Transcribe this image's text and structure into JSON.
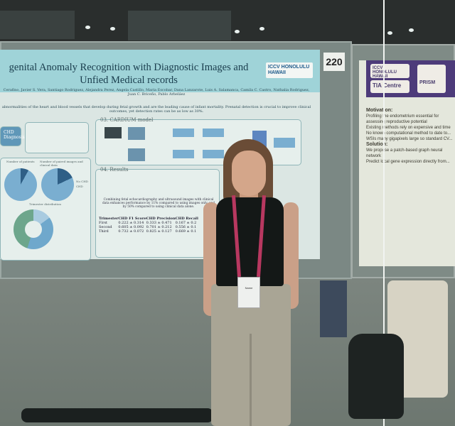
{
  "poster_left": {
    "title_line1": "genital Anomaly Recognition with Diagnostic Images and",
    "title_line2": "Unfied Medical records",
    "authors": "Cerafino, Javier S. Vera, Santiago Rodriguez, Alejandra Perez, Angela Castillo, Maria Escobar, Dana Lanzarote, Luis A. Salamanca, Camila C. Castro, Nathalia Rodriguez, Juan C. Briceño, Pablo Arbeláez",
    "abstract": "abnormalities of the heart and blood vessels that develop during fetal growth and are the leading cause of infant mortality. Prenatal detection is crucial to improve clinical outcomes, yet detection rates can be as low as 30%.",
    "logo_text": "ICCV HONOLULU HAWAII",
    "side_label": "CHD Diagnosis",
    "section_model": "03. CARDIUM model",
    "section_results": "04. Results",
    "chart_titles": [
      "Number of patients",
      "Number of paired images and clinical data",
      "Trimester distribution"
    ],
    "legend": [
      "No CHD",
      "CHD"
    ],
    "results_text": "Combining fetal echocardiography and ultrasound images with clinical data enhances performance by 11% compared to using images only, and by 50% compared to using clinical data alone.",
    "table": {
      "headers": [
        "Trimester",
        "CHD F1 Score",
        "CHD Precision",
        "CHD Recall"
      ],
      "rows": [
        [
          "First",
          "0.222 ± 0.314",
          "0.333 ± 0.471",
          "0.167 ± 0.2"
        ],
        [
          "Second",
          "0.605 ± 0.092",
          "0.701 ± 0.212",
          "0.556 ± 0.1"
        ],
        [
          "Third",
          "0.732 ± 0.072",
          "0.825 ± 0.127",
          "0.669 ± 0.1"
        ]
      ]
    }
  },
  "board_number": "220",
  "poster_right": {
    "logos": [
      "ICCV HONOLULU HAWAII",
      "TIA Centre",
      "PRISM"
    ],
    "motivation_title": "Motivation:",
    "motivation": [
      "Profiling the endometrium essential for assessing reproductive potential",
      "Existing methods rely on expensive and time",
      "No known computational method to date to...",
      "WSIs many gigapixels large so standard CV..."
    ],
    "solution_title": "Solution:",
    "solution": [
      "We propose a patch-based graph neural network",
      "Predict local gene expression directly from..."
    ]
  },
  "badge_text": "Name"
}
